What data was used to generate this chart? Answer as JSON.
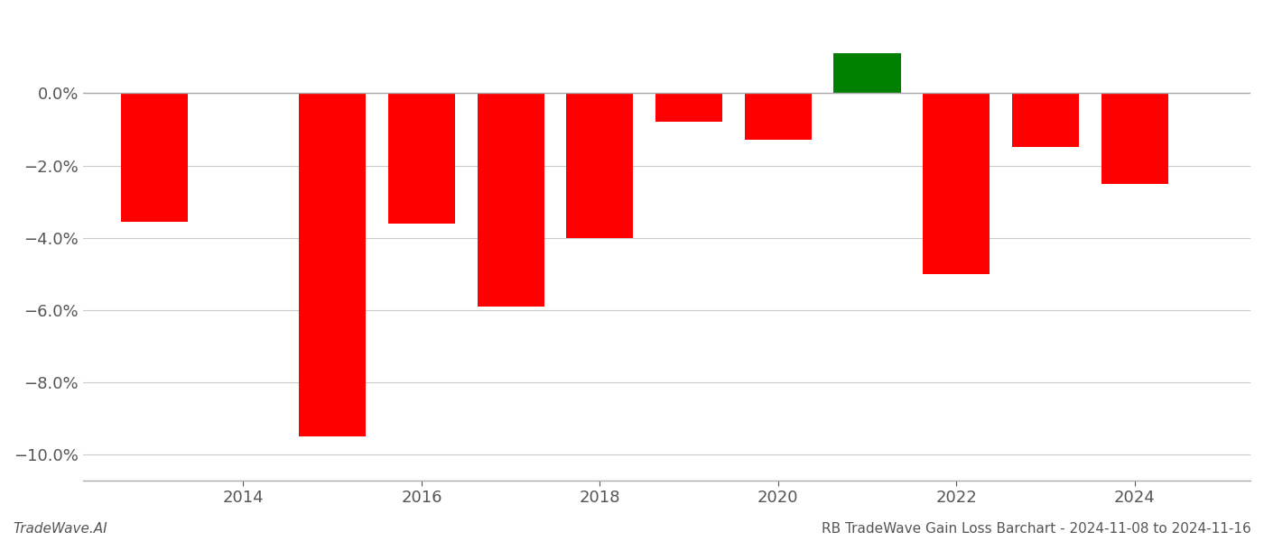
{
  "years": [
    2013,
    2015,
    2016,
    2017,
    2018,
    2019,
    2020,
    2021,
    2022,
    2023,
    2024
  ],
  "values": [
    -0.0355,
    -0.095,
    -0.036,
    -0.059,
    -0.04,
    -0.008,
    -0.013,
    0.011,
    -0.05,
    -0.015,
    -0.025
  ],
  "colors": [
    "#ff0000",
    "#ff0000",
    "#ff0000",
    "#ff0000",
    "#ff0000",
    "#ff0000",
    "#ff0000",
    "#008000",
    "#ff0000",
    "#ff0000",
    "#ff0000"
  ],
  "xlim": [
    2012.2,
    2025.3
  ],
  "ylim": [
    -0.107,
    0.022
  ],
  "yticks": [
    -0.1,
    -0.08,
    -0.06,
    -0.04,
    -0.02,
    0.0
  ],
  "xticks": [
    2014,
    2016,
    2018,
    2020,
    2022,
    2024
  ],
  "xlabel_bottom": "TradeWave.AI",
  "xlabel_right": "RB TradeWave Gain Loss Barchart - 2024-11-08 to 2024-11-16",
  "bar_width": 0.75,
  "background_color": "#ffffff",
  "grid_color": "#cccccc",
  "text_color": "#555555"
}
